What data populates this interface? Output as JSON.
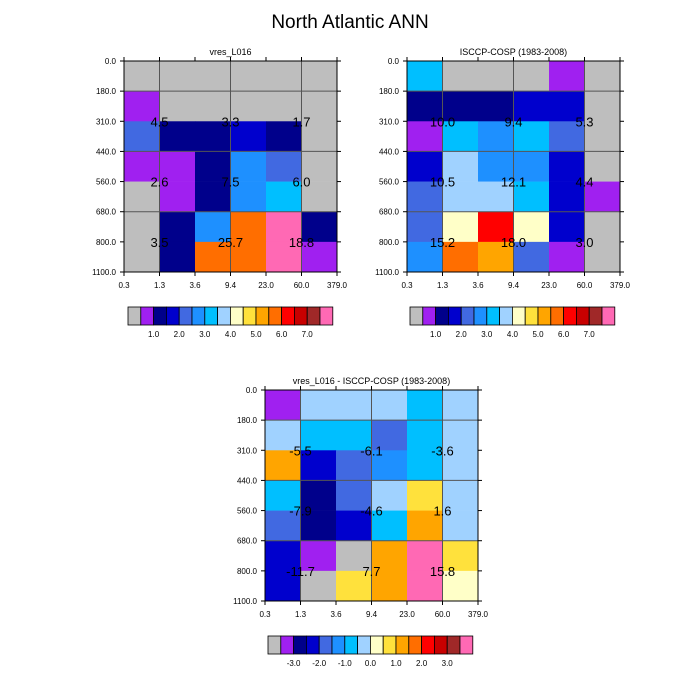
{
  "title": "North Atlantic ANN",
  "palette": [
    "#bebebe",
    "#a020f0",
    "#00008b",
    "#0000cd",
    "#4169e1",
    "#1e90ff",
    "#00bfff",
    "#a0d2ff",
    "#ffffc8",
    "#ffe13c",
    "#ffa500",
    "#ff6e00",
    "#ff0000",
    "#c80000",
    "#a02828",
    "#ff69b4"
  ],
  "chart_data": [
    {
      "type": "heatmap",
      "title": "vres_L016",
      "x_ticks": [
        "0.3",
        "1.3",
        "3.6",
        "9.4",
        "23.0",
        "60.0",
        "379.0"
      ],
      "y_ticks": [
        "0.0",
        "180.0",
        "310.0",
        "440.0",
        "560.0",
        "680.0",
        "800.0",
        "1100.0"
      ],
      "cell_color_index": [
        [
          0,
          0,
          0,
          0,
          0,
          0
        ],
        [
          1,
          0,
          0,
          0,
          0,
          0
        ],
        [
          4,
          2,
          2,
          3,
          2,
          0
        ],
        [
          1,
          1,
          2,
          5,
          4,
          0
        ],
        [
          0,
          1,
          2,
          5,
          6,
          0
        ],
        [
          0,
          2,
          5,
          11,
          15,
          2
        ],
        [
          0,
          2,
          11,
          11,
          15,
          1
        ]
      ],
      "annotations": [
        {
          "x_band": 0,
          "y_band": 0,
          "text": "4.5"
        },
        {
          "x_band": 1,
          "y_band": 0,
          "text": "3.3"
        },
        {
          "x_band": 2,
          "y_band": 0,
          "text": "1.7"
        },
        {
          "x_band": 0,
          "y_band": 1,
          "text": "2.6"
        },
        {
          "x_band": 1,
          "y_band": 1,
          "text": "7.5"
        },
        {
          "x_band": 2,
          "y_band": 1,
          "text": "6.0"
        },
        {
          "x_band": 0,
          "y_band": 2,
          "text": "3.5"
        },
        {
          "x_band": 1,
          "y_band": 2,
          "text": "25.7"
        },
        {
          "x_band": 2,
          "y_band": 2,
          "text": "18.8"
        }
      ],
      "colorbar_labels": [
        "1.0",
        "2.0",
        "3.0",
        "4.0",
        "5.0",
        "6.0",
        "7.0"
      ]
    },
    {
      "type": "heatmap",
      "title": "ISCCP-COSP (1983-2008)",
      "x_ticks": [
        "0.3",
        "1.3",
        "3.6",
        "9.4",
        "23.0",
        "60.0",
        "379.0"
      ],
      "y_ticks": [
        "0.0",
        "180.0",
        "310.0",
        "440.0",
        "560.0",
        "680.0",
        "800.0",
        "1100.0"
      ],
      "cell_color_index": [
        [
          6,
          0,
          0,
          0,
          1,
          0
        ],
        [
          2,
          2,
          2,
          3,
          3,
          0
        ],
        [
          1,
          6,
          5,
          6,
          4,
          0
        ],
        [
          3,
          7,
          5,
          5,
          3,
          0
        ],
        [
          4,
          7,
          7,
          6,
          3,
          1
        ],
        [
          4,
          8,
          12,
          8,
          3,
          0
        ],
        [
          5,
          11,
          10,
          4,
          1,
          0
        ]
      ],
      "annotations": [
        {
          "x_band": 0,
          "y_band": 0,
          "text": "10.0"
        },
        {
          "x_band": 1,
          "y_band": 0,
          "text": "9.4"
        },
        {
          "x_band": 2,
          "y_band": 0,
          "text": "5.3"
        },
        {
          "x_band": 0,
          "y_band": 1,
          "text": "10.5"
        },
        {
          "x_band": 1,
          "y_band": 1,
          "text": "12.1"
        },
        {
          "x_band": 2,
          "y_band": 1,
          "text": "4.4"
        },
        {
          "x_band": 0,
          "y_band": 2,
          "text": "15.2"
        },
        {
          "x_band": 1,
          "y_band": 2,
          "text": "18.0"
        },
        {
          "x_band": 2,
          "y_band": 2,
          "text": "3.0"
        }
      ],
      "colorbar_labels": [
        "1.0",
        "2.0",
        "3.0",
        "4.0",
        "5.0",
        "6.0",
        "7.0"
      ]
    },
    {
      "type": "heatmap",
      "title": "vres_L016 - ISCCP-COSP (1983-2008)",
      "x_ticks": [
        "0.3",
        "1.3",
        "3.6",
        "9.4",
        "23.0",
        "60.0",
        "379.0"
      ],
      "y_ticks": [
        "0.0",
        "180.0",
        "310.0",
        "440.0",
        "560.0",
        "680.0",
        "800.0",
        "1100.0"
      ],
      "cell_color_index": [
        [
          1,
          7,
          7,
          7,
          6,
          7
        ],
        [
          7,
          6,
          6,
          4,
          6,
          7
        ],
        [
          10,
          3,
          4,
          5,
          6,
          7
        ],
        [
          6,
          2,
          4,
          7,
          9,
          7
        ],
        [
          4,
          2,
          3,
          6,
          10,
          7
        ],
        [
          3,
          1,
          0,
          10,
          15,
          9
        ],
        [
          3,
          0,
          9,
          10,
          15,
          8
        ]
      ],
      "annotations": [
        {
          "x_band": 0,
          "y_band": 0,
          "text": "-5.5"
        },
        {
          "x_band": 1,
          "y_band": 0,
          "text": "-6.1"
        },
        {
          "x_band": 2,
          "y_band": 0,
          "text": "-3.6"
        },
        {
          "x_band": 0,
          "y_band": 1,
          "text": "-7.9"
        },
        {
          "x_band": 1,
          "y_band": 1,
          "text": "-4.6"
        },
        {
          "x_band": 2,
          "y_band": 1,
          "text": "1.6"
        },
        {
          "x_band": 0,
          "y_band": 2,
          "text": "-11.7"
        },
        {
          "x_band": 1,
          "y_band": 2,
          "text": "7.7"
        },
        {
          "x_band": 2,
          "y_band": 2,
          "text": "15.8"
        }
      ],
      "colorbar_labels": [
        "-3.0",
        "-2.0",
        "-1.0",
        "0.0",
        "1.0",
        "2.0",
        "3.0"
      ]
    }
  ]
}
